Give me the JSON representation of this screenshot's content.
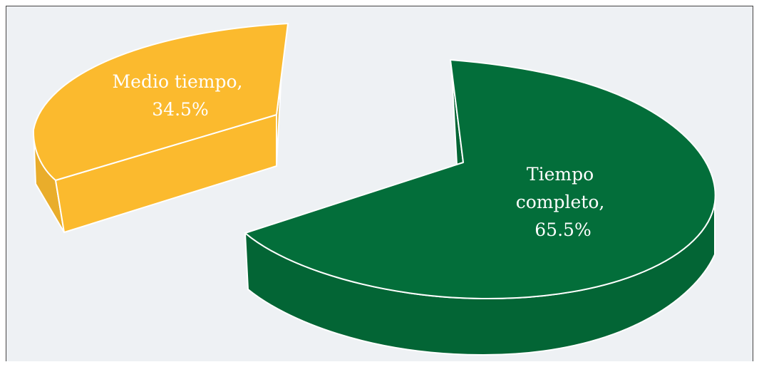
{
  "chart_data": {
    "type": "pie",
    "title": "",
    "exploded": true,
    "three_d": true,
    "categories": [
      "Tiempo completo",
      "Medio tiempo"
    ],
    "values": [
      65.5,
      34.5
    ],
    "colors": [
      "#036E3A",
      "#FBBA2E"
    ],
    "labels": [
      {
        "lines": [
          "Tiempo",
          "completo,",
          "65.5%"
        ]
      },
      {
        "lines": [
          "Medio tiempo,",
          "34.5%"
        ]
      }
    ],
    "background": "#EEF1F4"
  }
}
